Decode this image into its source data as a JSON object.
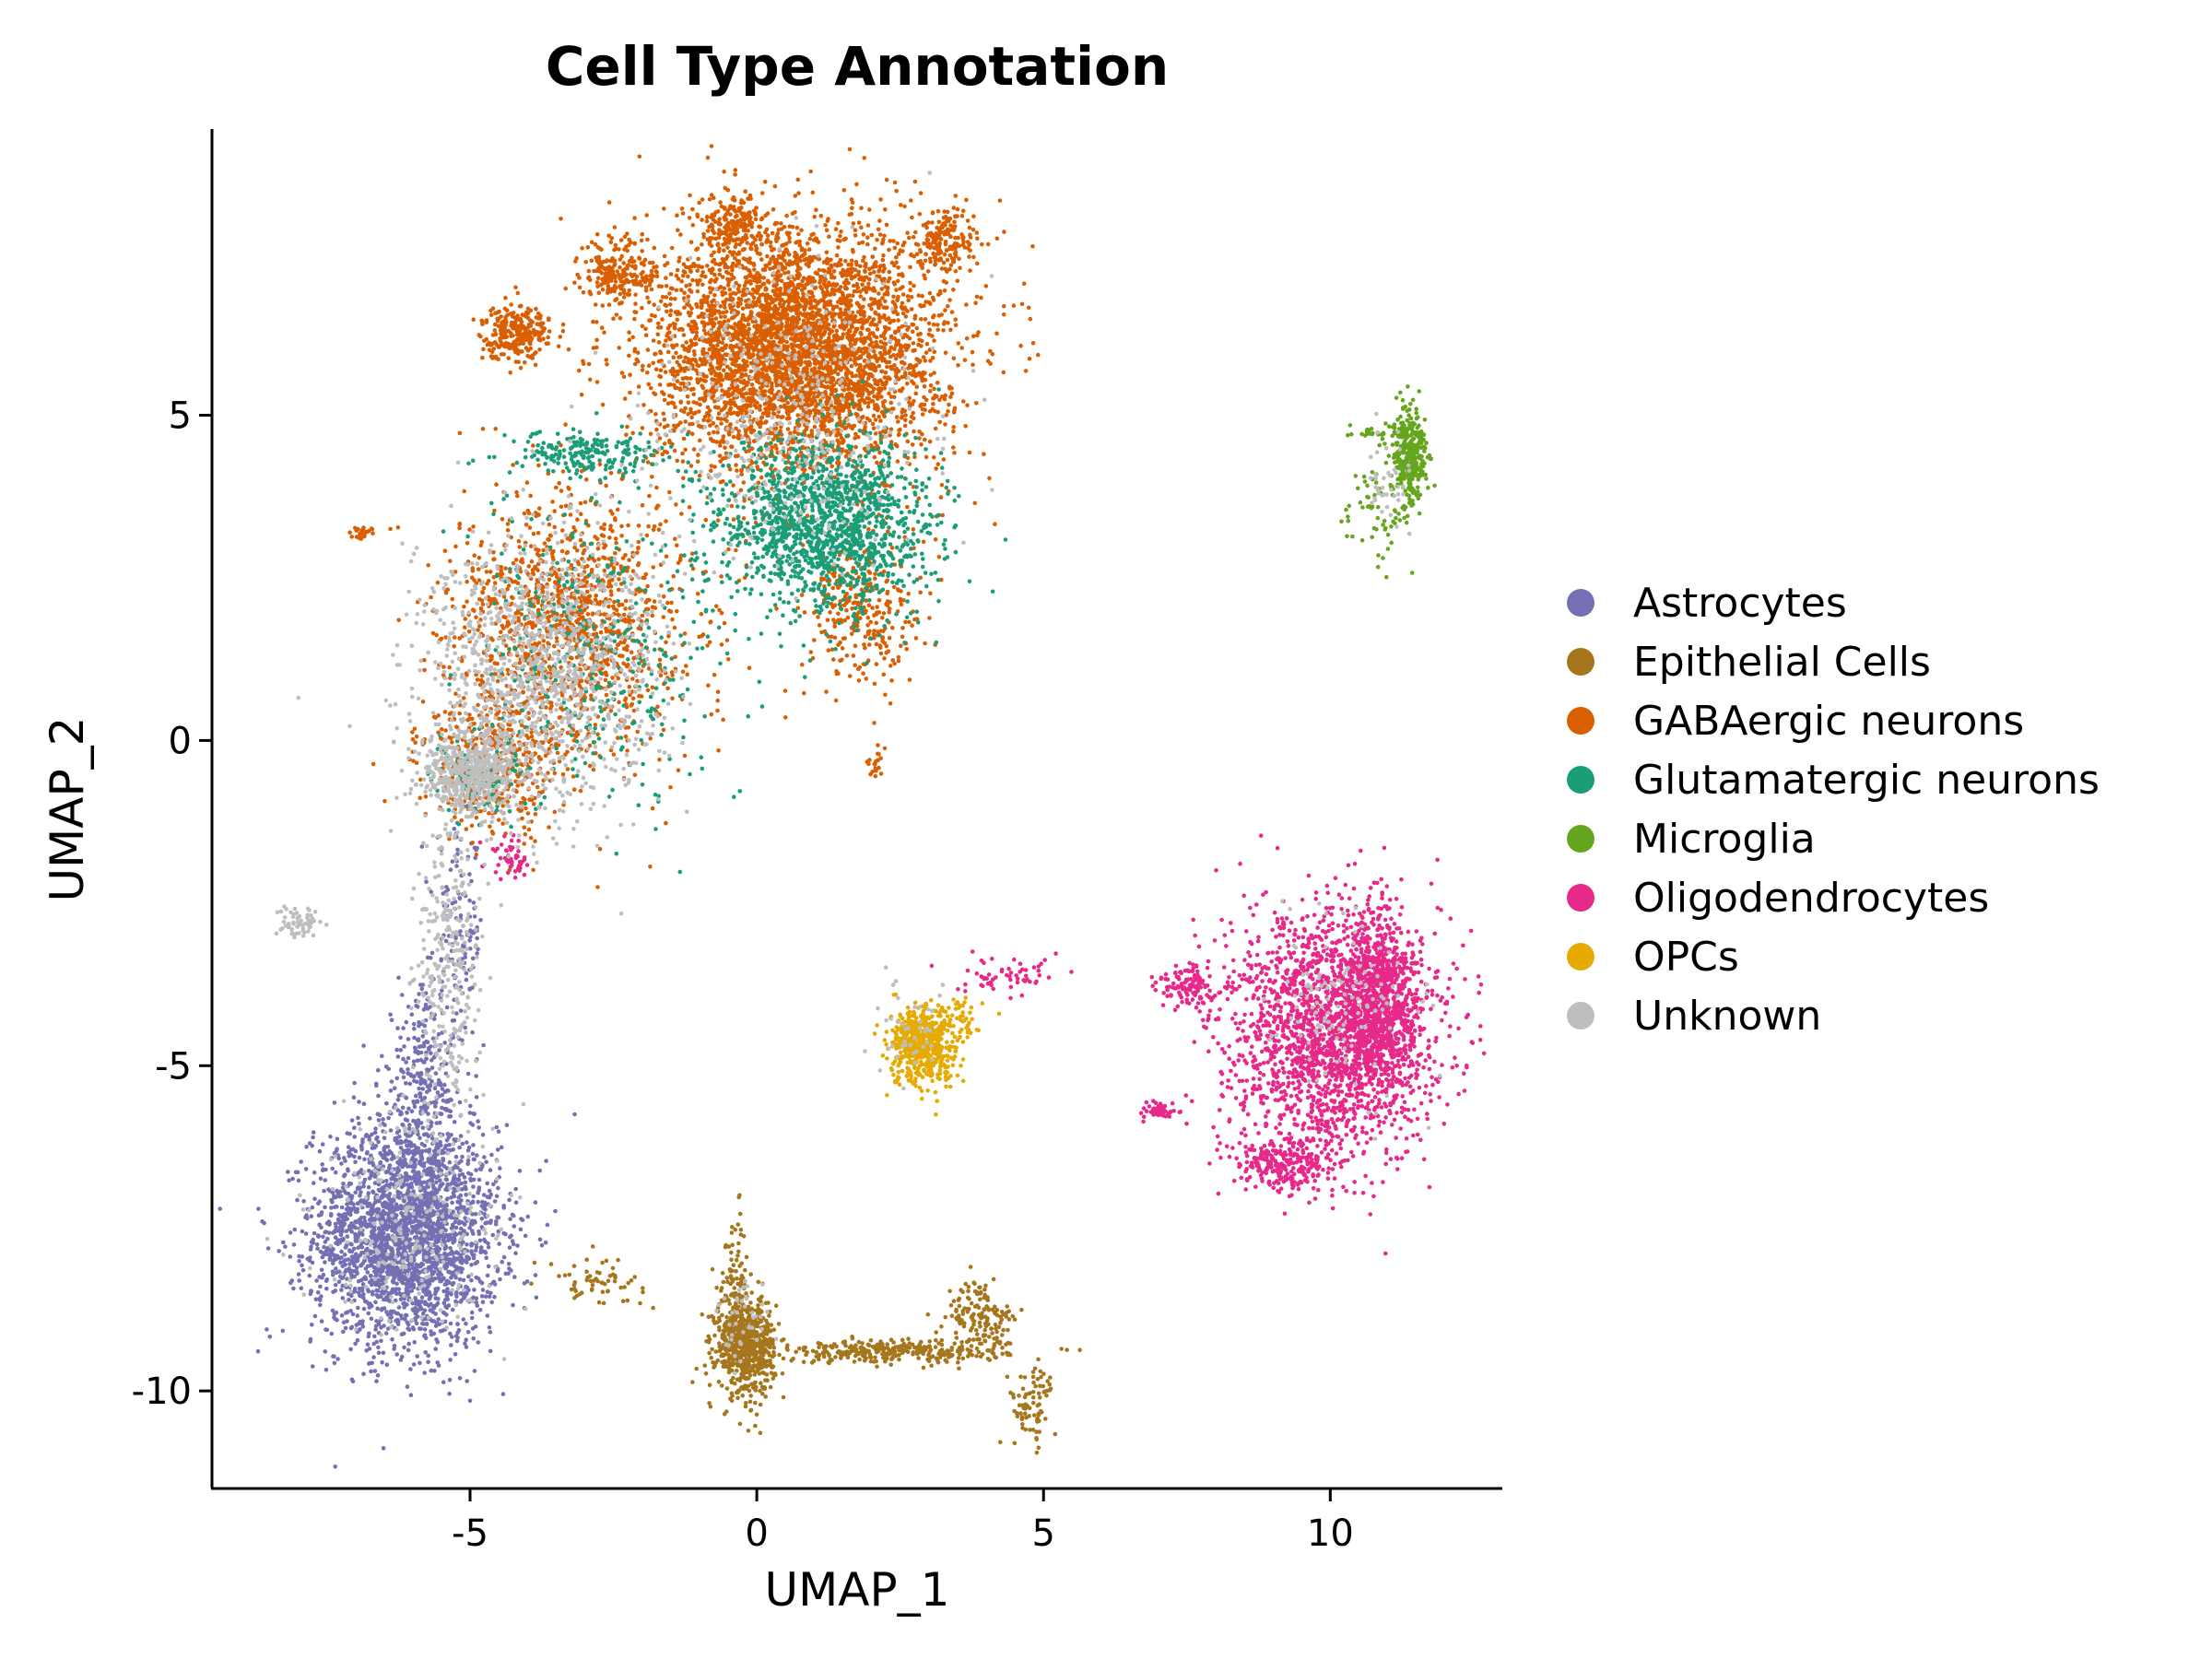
{
  "chart_data": {
    "type": "scatter",
    "title": "Cell Type Annotation",
    "xlabel": "UMAP_1",
    "ylabel": "UMAP_2",
    "xlim": [
      -9.5,
      13
    ],
    "ylim": [
      -11.5,
      9.4
    ],
    "xticks": [
      -5,
      0,
      5,
      10
    ],
    "yticks": [
      5,
      0,
      -5,
      -10
    ],
    "grid": false,
    "legend_position": "right",
    "series": [
      {
        "name": "Astrocytes",
        "color": "#7570B3",
        "clusters": [
          {
            "cx": -6.1,
            "cy": -7.6,
            "sx": 0.95,
            "sy": 1.0,
            "n": 2600
          },
          {
            "cx": -5.8,
            "cy": -5.3,
            "sx": 0.45,
            "sy": 0.9,
            "n": 300
          },
          {
            "cx": -5.2,
            "cy": -2.9,
            "sx": 0.25,
            "sy": 0.9,
            "n": 120
          }
        ]
      },
      {
        "name": "Epithelial Cells",
        "color": "#A6761D",
        "clusters": [
          {
            "cx": -0.2,
            "cy": -9.3,
            "sx": 0.3,
            "sy": 0.45,
            "n": 650
          },
          {
            "cx": 2.3,
            "cy": -9.4,
            "sx": 1.2,
            "sy": 0.1,
            "n": 300
          },
          {
            "cx": 3.9,
            "cy": -8.9,
            "sx": 0.35,
            "sy": 0.35,
            "n": 160
          },
          {
            "cx": 4.8,
            "cy": -10.2,
            "sx": 0.25,
            "sy": 0.35,
            "n": 80
          },
          {
            "cx": -2.8,
            "cy": -8.3,
            "sx": 0.5,
            "sy": 0.2,
            "n": 60
          },
          {
            "cx": -0.4,
            "cy": -8.3,
            "sx": 0.15,
            "sy": 0.6,
            "n": 80
          }
        ]
      },
      {
        "name": "GABAergic neurons",
        "color": "#D95F02",
        "clusters": [
          {
            "cx": 0.7,
            "cy": 6.0,
            "sx": 1.5,
            "sy": 1.1,
            "n": 4200
          },
          {
            "cx": -4.2,
            "cy": 6.3,
            "sx": 0.35,
            "sy": 0.25,
            "n": 260
          },
          {
            "cx": -2.4,
            "cy": 7.2,
            "sx": 0.4,
            "sy": 0.3,
            "n": 200
          },
          {
            "cx": -0.4,
            "cy": 7.9,
            "sx": 0.3,
            "sy": 0.3,
            "n": 200
          },
          {
            "cx": 3.3,
            "cy": 7.7,
            "sx": 0.3,
            "sy": 0.3,
            "n": 180
          },
          {
            "cx": -3.2,
            "cy": 1.8,
            "sx": 1.2,
            "sy": 1.2,
            "n": 1300
          },
          {
            "cx": -4.6,
            "cy": -0.4,
            "sx": 0.7,
            "sy": 0.6,
            "n": 400
          },
          {
            "cx": 1.8,
            "cy": 2.0,
            "sx": 0.6,
            "sy": 0.7,
            "n": 300
          },
          {
            "cx": -6.9,
            "cy": 3.2,
            "sx": 0.1,
            "sy": 0.06,
            "n": 25
          },
          {
            "cx": 2.1,
            "cy": -0.3,
            "sx": 0.1,
            "sy": 0.15,
            "n": 20
          }
        ]
      },
      {
        "name": "Glutamatergic neurons",
        "color": "#1B9E77",
        "clusters": [
          {
            "cx": 1.2,
            "cy": 3.3,
            "sx": 1.1,
            "sy": 0.8,
            "n": 1500
          },
          {
            "cx": -3.0,
            "cy": 4.4,
            "sx": 0.8,
            "sy": 0.2,
            "n": 200
          },
          {
            "cx": -2.8,
            "cy": 1.3,
            "sx": 1.3,
            "sy": 1.3,
            "n": 350
          },
          {
            "cx": -4.8,
            "cy": -0.6,
            "sx": 0.5,
            "sy": 0.4,
            "n": 100
          }
        ]
      },
      {
        "name": "Microglia",
        "color": "#66A61E",
        "clusters": [
          {
            "cx": 11.4,
            "cy": 4.4,
            "sx": 0.18,
            "sy": 0.4,
            "n": 350
          },
          {
            "cx": 10.8,
            "cy": 3.5,
            "sx": 0.3,
            "sy": 0.4,
            "n": 60
          },
          {
            "cx": 10.8,
            "cy": 4.75,
            "sx": 0.3,
            "sy": 0.06,
            "n": 30
          }
        ]
      },
      {
        "name": "Oligodendrocytes",
        "color": "#E7298A",
        "clusters": [
          {
            "cx": 10.0,
            "cy": -4.5,
            "sx": 1.1,
            "sy": 1.1,
            "n": 2000
          },
          {
            "cx": 10.8,
            "cy": -4.0,
            "sx": 0.4,
            "sy": 0.8,
            "n": 800
          },
          {
            "cx": 9.2,
            "cy": -6.5,
            "sx": 0.5,
            "sy": 0.25,
            "n": 250
          },
          {
            "cx": 7.5,
            "cy": -3.8,
            "sx": 0.3,
            "sy": 0.2,
            "n": 120
          },
          {
            "cx": 7.0,
            "cy": -5.7,
            "sx": 0.2,
            "sy": 0.08,
            "n": 50
          },
          {
            "cx": 4.3,
            "cy": -3.6,
            "sx": 0.5,
            "sy": 0.2,
            "n": 60
          },
          {
            "cx": -4.3,
            "cy": -1.8,
            "sx": 0.2,
            "sy": 0.25,
            "n": 50
          }
        ]
      },
      {
        "name": "OPCs",
        "color": "#E6AB02",
        "clusters": [
          {
            "cx": 2.9,
            "cy": -4.7,
            "sx": 0.35,
            "sy": 0.35,
            "n": 550
          },
          {
            "cx": 3.6,
            "cy": -4.3,
            "sx": 0.3,
            "sy": 0.2,
            "n": 40
          }
        ]
      },
      {
        "name": "Unknown",
        "color": "#BEBEBE",
        "clusters": [
          {
            "cx": -3.8,
            "cy": 1.0,
            "sx": 1.2,
            "sy": 1.3,
            "n": 1200
          },
          {
            "cx": -5.0,
            "cy": -0.5,
            "sx": 0.5,
            "sy": 0.4,
            "n": 500
          },
          {
            "cx": -5.4,
            "cy": -3.5,
            "sx": 0.3,
            "sy": 1.3,
            "n": 300
          },
          {
            "cx": -6.0,
            "cy": -7.4,
            "sx": 1.0,
            "sy": 1.0,
            "n": 250
          },
          {
            "cx": -8.0,
            "cy": -2.8,
            "sx": 0.25,
            "sy": 0.12,
            "n": 60
          },
          {
            "cx": 0.5,
            "cy": 5.0,
            "sx": 1.5,
            "sy": 1.3,
            "n": 400
          },
          {
            "cx": 10.2,
            "cy": -4.0,
            "sx": 0.8,
            "sy": 0.8,
            "n": 120
          },
          {
            "cx": 11.0,
            "cy": 3.9,
            "sx": 0.25,
            "sy": 0.4,
            "n": 40
          },
          {
            "cx": 2.8,
            "cy": -4.5,
            "sx": 0.4,
            "sy": 0.5,
            "n": 40
          },
          {
            "cx": -0.2,
            "cy": -9.0,
            "sx": 0.3,
            "sy": 0.6,
            "n": 40
          }
        ]
      }
    ]
  }
}
